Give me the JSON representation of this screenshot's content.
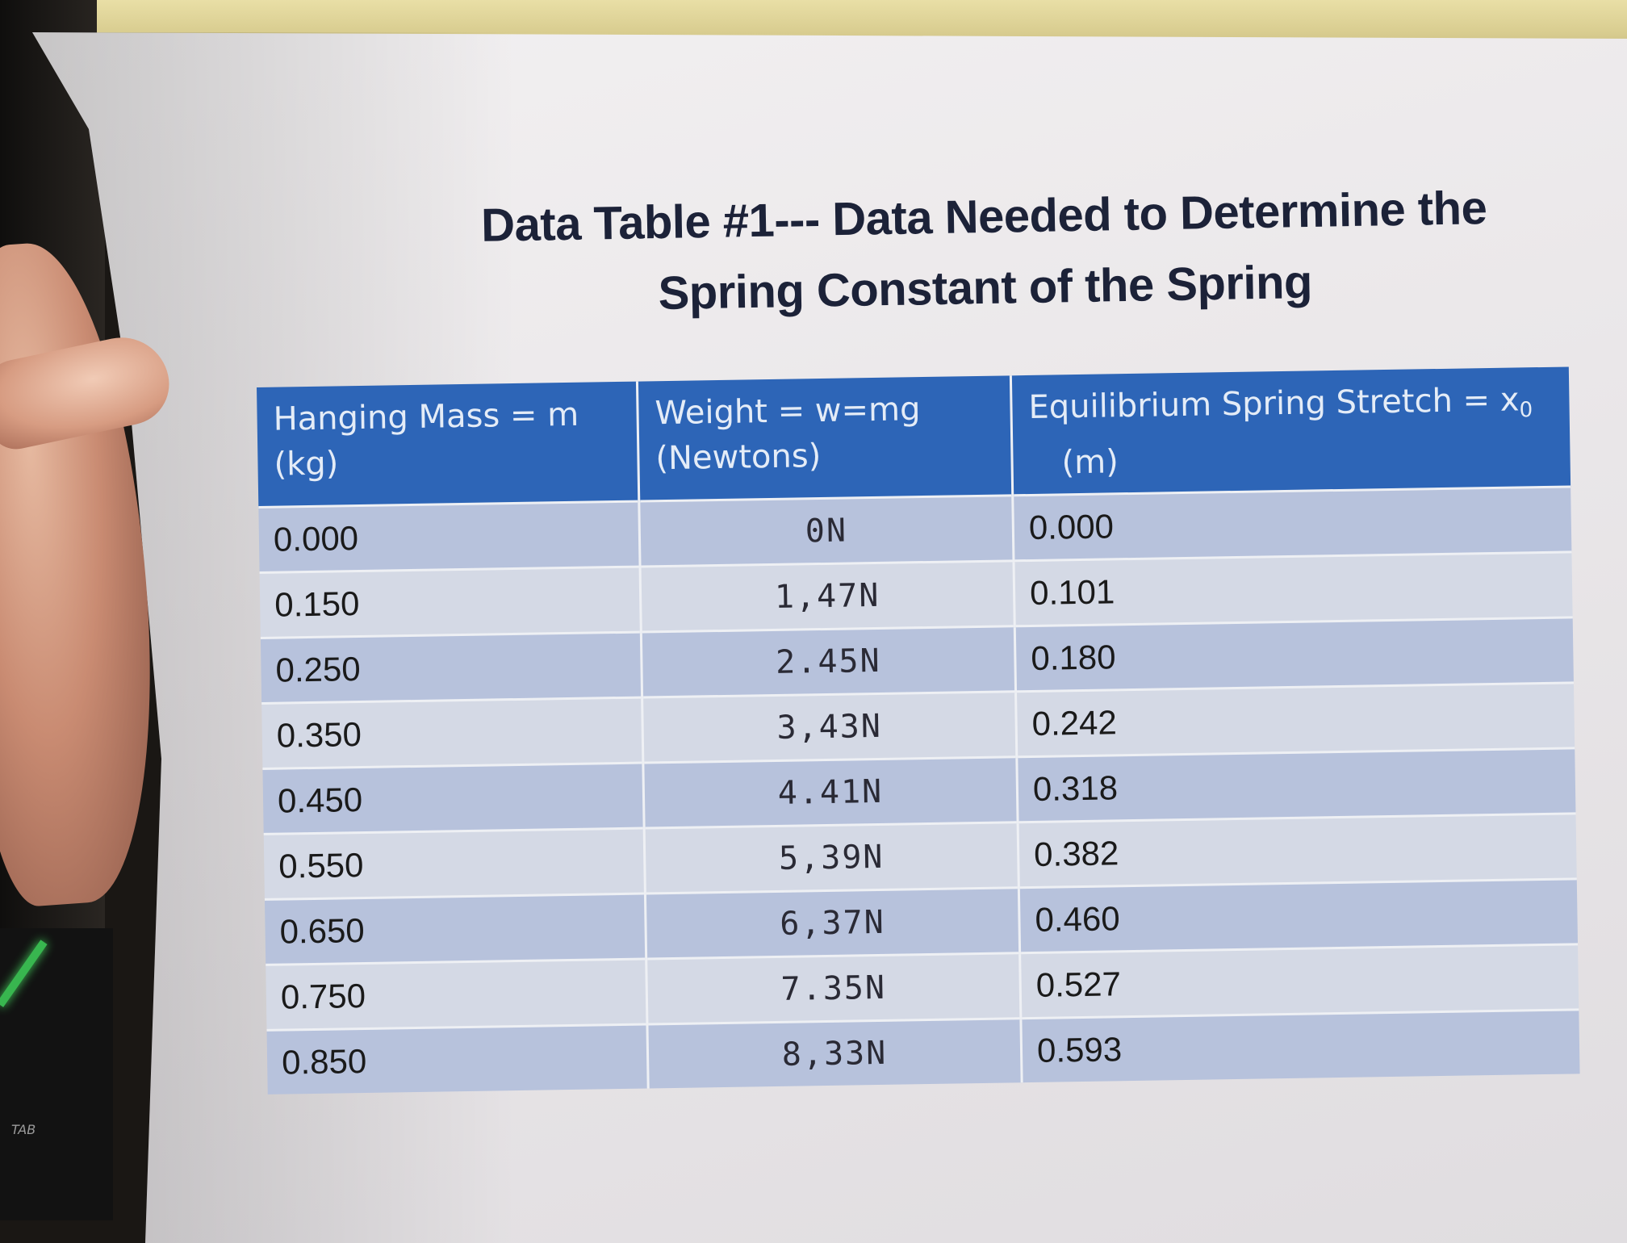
{
  "title": {
    "line1": "Data Table #1--- Data Needed to Determine the",
    "line2": "Spring Constant of the Spring"
  },
  "table": {
    "headers": [
      {
        "line1": "Hanging Mass = m",
        "line2": "(kg)"
      },
      {
        "line1": "Weight = w=mg",
        "line2": "(Newtons)"
      },
      {
        "line1": "Equilibrium Spring Stretch = x",
        "subscript": "0",
        "line2": "(m)"
      }
    ],
    "rows": [
      {
        "mass": "0.000",
        "weight": "0N",
        "stretch": "0.000"
      },
      {
        "mass": "0.150",
        "weight": "1,47N",
        "stretch": "0.101"
      },
      {
        "mass": "0.250",
        "weight": "2.45N",
        "stretch": "0.180"
      },
      {
        "mass": "0.350",
        "weight": "3,43N",
        "stretch": "0.242"
      },
      {
        "mass": "0.450",
        "weight": "4.41N",
        "stretch": "0.318"
      },
      {
        "mass": "0.550",
        "weight": "5,39N",
        "stretch": "0.382"
      },
      {
        "mass": "0.650",
        "weight": "6,37N",
        "stretch": "0.460"
      },
      {
        "mass": "0.750",
        "weight": "7.35N",
        "stretch": "0.527"
      },
      {
        "mass": "0.850",
        "weight": "8,33N",
        "stretch": "0.593"
      }
    ]
  },
  "keyboard": {
    "tab_label": "TAB"
  },
  "colors": {
    "header_blue": "#2d65b7",
    "row_dark": "#b7c2dc",
    "row_light": "#d4d9e5",
    "key_glow": "#3fd35a"
  }
}
